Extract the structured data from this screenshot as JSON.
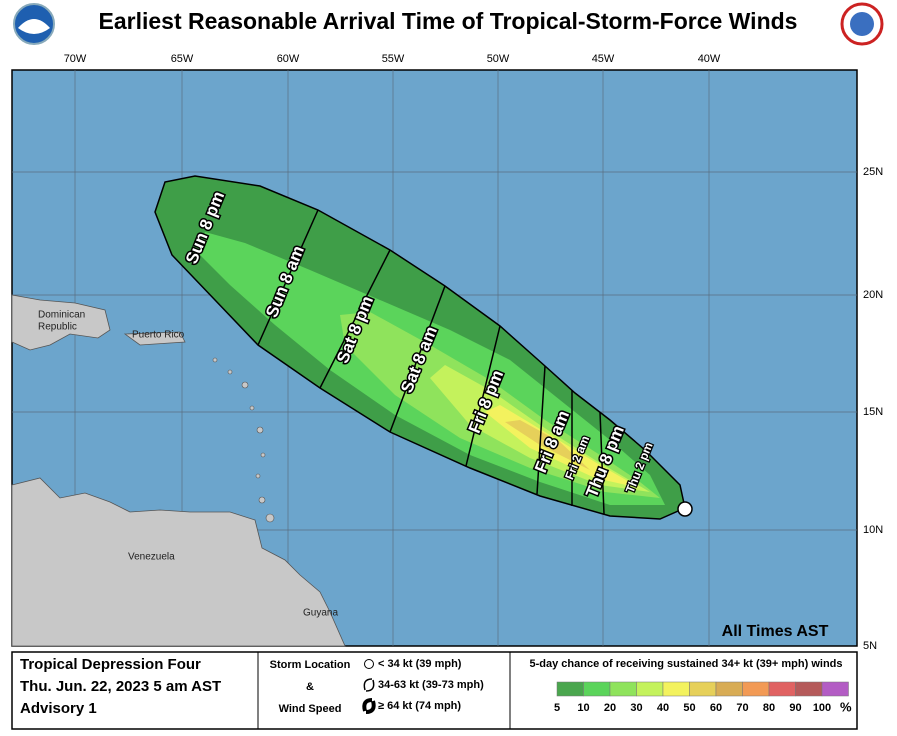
{
  "title": "Earliest Reasonable Arrival Time of Tropical-Storm-Force Winds",
  "longitude_labels": [
    "70W",
    "65W",
    "60W",
    "55W",
    "50W",
    "45W",
    "40W"
  ],
  "latitude_labels": [
    "25N",
    "20N",
    "15N",
    "10N",
    "5N"
  ],
  "time_labels": [
    "Sun 8 pm",
    "Sun 8 am",
    "Sat 8 pm",
    "Sat 8 am",
    "Fri 8 pm",
    "Fri 8 am",
    "Fri 2 am",
    "Thu 8 pm",
    "Thu 2 pm"
  ],
  "place_labels": [
    "Dominican",
    "Republic",
    "Puerto Rico",
    "Venezuela",
    "Guyana"
  ],
  "time_zone_note": "All Times AST",
  "storm_info": [
    "Tropical Depression Four",
    "Thu. Jun. 22, 2023  5 am AST",
    "Advisory 1"
  ],
  "storm_location_legend": {
    "heading": [
      "Storm Location",
      "&",
      "Wind Speed"
    ],
    "entries": [
      "< 34 kt (39 mph)",
      "34-63 kt (39-73 mph)",
      "≥ 64 kt (74 mph)"
    ]
  },
  "probability_legend": {
    "title": "5-day chance of receiving sustained 34+ kt (39+ mph) winds",
    "scale": [
      {
        "label": "5",
        "color": "#4aa64e"
      },
      {
        "label": "10",
        "color": "#5bd45b"
      },
      {
        "label": "20",
        "color": "#8fe35c"
      },
      {
        "label": "30",
        "color": "#c4f25c"
      },
      {
        "label": "40",
        "color": "#f3f25e"
      },
      {
        "label": "50",
        "color": "#e6d05a"
      },
      {
        "label": "60",
        "color": "#d8ac55"
      },
      {
        "label": "70",
        "color": "#f29a55"
      },
      {
        "label": "80",
        "color": "#e06262"
      },
      {
        "label": "90",
        "color": "#b55a5a"
      },
      {
        "label": "100",
        "color": "#b35cc4"
      }
    ],
    "unit": "%"
  }
}
